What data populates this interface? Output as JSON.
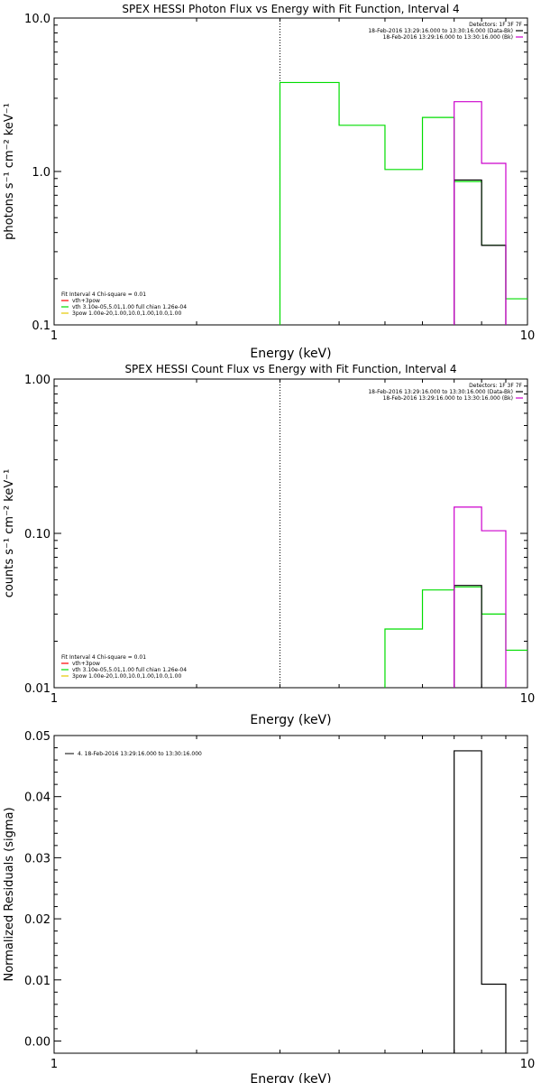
{
  "chart_data": [
    {
      "type": "line",
      "title": "SPEX HESSI Photon Flux vs Energy with Fit Function, Interval 4",
      "xlabel": "Energy (keV)",
      "ylabel": "photons s⁻¹ cm⁻² keV⁻¹",
      "xlog": true,
      "ylog": true,
      "xlim": [
        1,
        10
      ],
      "ylim": [
        0.1,
        10
      ],
      "xticks": [
        {
          "v": 1,
          "label": "1"
        },
        {
          "v": 10,
          "label": "10"
        }
      ],
      "yticks": [
        {
          "v": 0.1,
          "label": "0.1"
        },
        {
          "v": 1,
          "label": "1.0"
        },
        {
          "v": 10,
          "label": "10.0"
        }
      ],
      "vline": 3,
      "legend_top": [
        "Detectors: 1F 3F 7F",
        "18-Feb-2016 13:29:16.000 to 13:30:16.000 (Data-Bk)",
        "18-Feb-2016 13:29:16.000 to 13:30:16.000 (Bk)"
      ],
      "legend_bottom": [
        "Fit Interval 4   Chi-square = 0.01",
        "vth+3pow",
        "vth 3.10e-05,5.01,1.00  full chian 1.26e-04",
        "3pow 1.00e-20,1.00,10.0,1.00,10.0,1.00"
      ],
      "series": [
        {
          "color": "#00dd00",
          "edges": [
            3,
            4,
            5,
            6,
            7,
            8,
            9,
            10
          ],
          "values": [
            3.8,
            2.0,
            1.03,
            2.25,
            0.86,
            0.33,
            0.148
          ]
        },
        {
          "color": "#000000",
          "edges": [
            7,
            8,
            9
          ],
          "values": [
            0.88,
            0.33
          ]
        },
        {
          "color": "#cc00cc",
          "edges": [
            7,
            8,
            9
          ],
          "values": [
            2.85,
            1.13
          ]
        }
      ]
    },
    {
      "type": "line",
      "title": "SPEX HESSI Count Flux vs Energy with Fit Function, Interval 4",
      "xlabel": "Energy (keV)",
      "ylabel": "counts s⁻¹ cm⁻² keV⁻¹",
      "xlog": true,
      "ylog": true,
      "xlim": [
        1,
        10
      ],
      "ylim": [
        0.01,
        1
      ],
      "xticks": [
        {
          "v": 1,
          "label": "1"
        },
        {
          "v": 10,
          "label": "10"
        }
      ],
      "yticks": [
        {
          "v": 0.01,
          "label": "0.01"
        },
        {
          "v": 0.1,
          "label": "0.10"
        },
        {
          "v": 1,
          "label": "1.00"
        }
      ],
      "vline": 3,
      "legend_top": [
        "Detectors: 1F 3F 7F",
        "18-Feb-2016 13:29:16.000 to 13:30:16.000 (Data-Bk)",
        "18-Feb-2016 13:29:16.000 to 13:30:16.000 (Bk)"
      ],
      "legend_bottom": [
        "Fit Interval 4   Chi-square = 0.01",
        "vth+3pow",
        "vth 3.10e-05,5.01,1.00  full chian 1.26e-04",
        "3pow 1.00e-20,1.00,10.0,1.00,10.0,1.00"
      ],
      "series": [
        {
          "color": "#00dd00",
          "edges": [
            5,
            6,
            7,
            8,
            9,
            10
          ],
          "values": [
            0.024,
            0.043,
            0.045,
            0.03,
            0.0175
          ]
        },
        {
          "color": "#000000",
          "edges": [
            7,
            8
          ],
          "values": [
            0.046
          ]
        },
        {
          "color": "#cc00cc",
          "edges": [
            7,
            8,
            9
          ],
          "values": [
            0.148,
            0.104
          ]
        }
      ]
    },
    {
      "type": "line",
      "title": "",
      "xlabel": "Energy (keV)",
      "ylabel": "Normalized Residuals (sigma)",
      "xlog": true,
      "ylog": false,
      "xlim": [
        1,
        10
      ],
      "ylim": [
        -0.002,
        0.05
      ],
      "xticks": [
        {
          "v": 1,
          "label": "1"
        },
        {
          "v": 10,
          "label": "10"
        }
      ],
      "yticks": [
        {
          "v": 0.0,
          "label": "0.00"
        },
        {
          "v": 0.01,
          "label": "0.01"
        },
        {
          "v": 0.02,
          "label": "0.02"
        },
        {
          "v": 0.03,
          "label": "0.03"
        },
        {
          "v": 0.04,
          "label": "0.04"
        },
        {
          "v": 0.05,
          "label": "0.05"
        }
      ],
      "legend_top": [],
      "legend_bottom": [],
      "legend_line": "4. 18-Feb-2016 13:29:16.000 to 13:30:16.000",
      "series": [
        {
          "color": "#000000",
          "edges": [
            7,
            8,
            9
          ],
          "values": [
            0.0475,
            0.0093
          ]
        }
      ]
    }
  ]
}
